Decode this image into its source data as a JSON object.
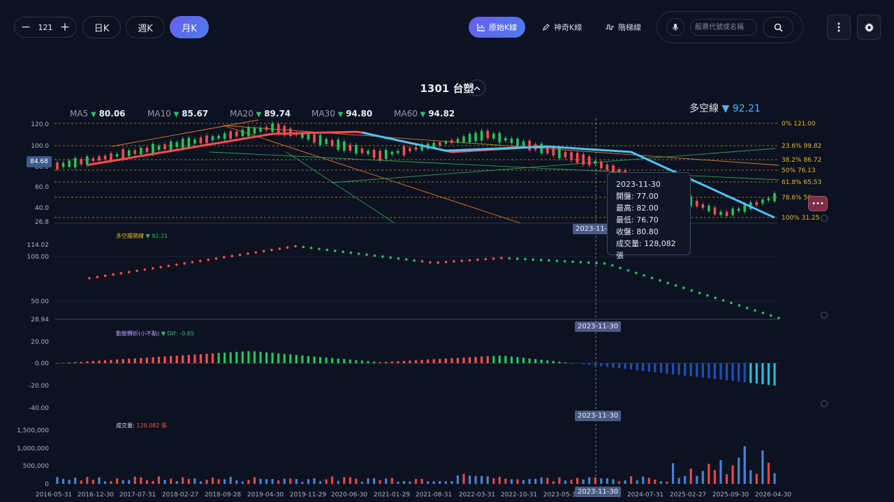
{
  "toolbar": {
    "count": "121",
    "minus": "−",
    "plus": "+",
    "periods": [
      {
        "label": "日K",
        "active": false
      },
      {
        "label": "週K",
        "active": false
      },
      {
        "label": "月K",
        "active": true
      }
    ],
    "modes": [
      {
        "label": "原始K線",
        "active": true
      },
      {
        "label": "神奇K線",
        "active": false
      },
      {
        "label": "階梯線",
        "active": false
      }
    ],
    "search_placeholder": "股票代號或名稱",
    "more_icon": "kebab-icon",
    "settings_icon": "gear-icon"
  },
  "stock": {
    "title": "1301 台塑"
  },
  "ma": [
    {
      "label": "MA5",
      "value": "80.06"
    },
    {
      "label": "MA10",
      "value": "85.67"
    },
    {
      "label": "MA20",
      "value": "89.74"
    },
    {
      "label": "MA30",
      "value": "94.80"
    },
    {
      "label": "MA60",
      "value": "94.82"
    }
  ],
  "duokong": {
    "label": "多空線",
    "value": "92.21"
  },
  "current_price": "84.68",
  "price_axis": [
    "120.0",
    "100.0",
    "80.0",
    "60.0",
    "40.0",
    "26.8"
  ],
  "fib_levels": [
    {
      "pct": "0%",
      "value": "121.00"
    },
    {
      "pct": "23.6%",
      "value": "99.82"
    },
    {
      "pct": "38.2%",
      "value": "86.72"
    },
    {
      "pct": "50%",
      "value": "76.13"
    },
    {
      "pct": "61.8%",
      "value": "65.53"
    },
    {
      "pct": "78.6%",
      "value": "50"
    },
    {
      "pct": "100%",
      "value": "31.25"
    }
  ],
  "trend_panel": {
    "label": "多空趨勢線",
    "value": "92.21",
    "axis": [
      "114.02",
      "100.00",
      "50.00",
      "28.94"
    ]
  },
  "macd_panel": {
    "label": "動態轉折(小不點)",
    "value_label": "DIF: -0.65",
    "axis": [
      "20.00",
      "0.00",
      "-20.00",
      "-40.00"
    ]
  },
  "volume_panel": {
    "label": "成交量:",
    "value": "128,082 張",
    "axis": [
      "1,500,000",
      "1,000,000",
      "500,000",
      "0"
    ]
  },
  "x_axis": [
    "2016-05-31",
    "2016-12-30",
    "2017-07-31",
    "2018-02-27",
    "2018-09-28",
    "2019-04-30",
    "2019-11-29",
    "2020-06-30",
    "2021-01-29",
    "2021-08-31",
    "2022-03-31",
    "2022-10-31",
    "2023-05-31",
    "2023-11-30",
    "2024-07-31",
    "2025-02-27",
    "2025-09-30",
    "2026-04-30"
  ],
  "crosshair_date": "2023-11-30",
  "tooltip": {
    "date": "2023-11-30",
    "open": "開盤: 77.00",
    "high": "最高: 82.00",
    "low": "最低: 76.70",
    "close": "收盤: 80.80",
    "volume": "成交量: 128,082 張"
  },
  "colors": {
    "up": "#ff4d4f",
    "down": "#22c55e",
    "ma_line": "#4fc3f7",
    "fib": "#e8b923",
    "accent": "#5b6cf0"
  }
}
